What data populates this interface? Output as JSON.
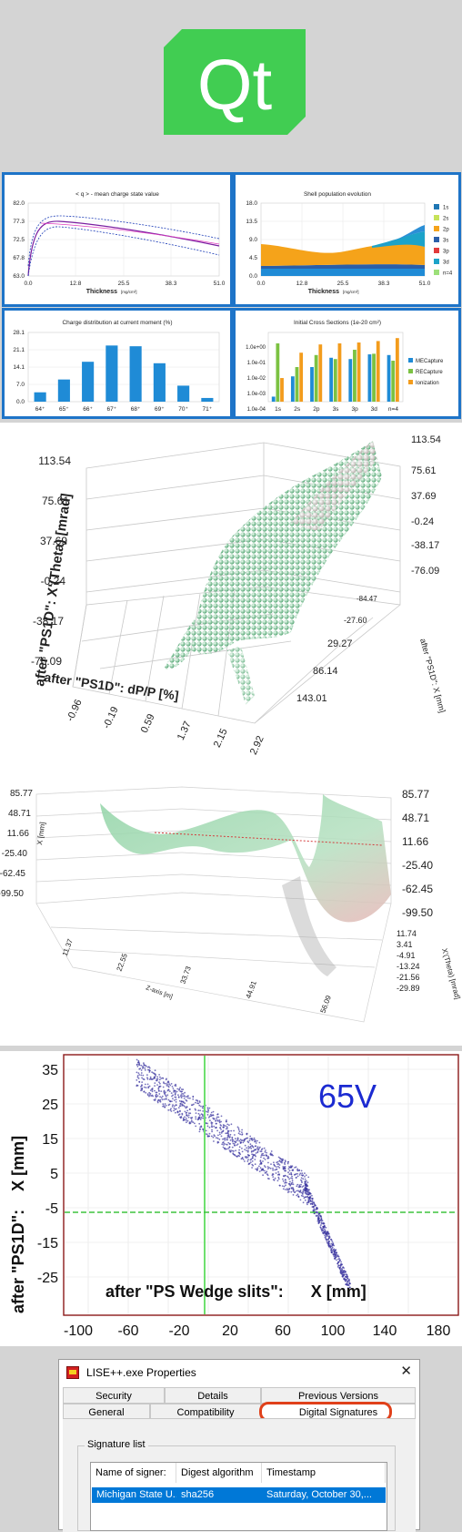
{
  "logo": {
    "text": "Qt",
    "color": "#41cd52"
  },
  "tiles": {
    "charge": {
      "title": "< q >  -  mean charge state value",
      "xlabel": "Thickness",
      "xunit": "[mg/cm²]",
      "yticks": [
        "82.0",
        "77.3",
        "72.5",
        "67.8",
        "63.0"
      ],
      "xticks": [
        "0.0",
        "12.8",
        "25.5",
        "38.3",
        "51.0"
      ]
    },
    "shell": {
      "title": "Shell population evolution",
      "xlabel": "Thickness",
      "xunit": "[mg/cm²]",
      "yticks": [
        "18.0",
        "13.5",
        "9.0",
        "4.5",
        "0.0"
      ],
      "xticks": [
        "0.0",
        "12.8",
        "25.5",
        "38.3",
        "51.0"
      ],
      "legend": [
        {
          "label": "1s",
          "color": "#1f77b4"
        },
        {
          "label": "2s",
          "color": "#c7e35a"
        },
        {
          "label": "2p",
          "color": "#f5a31a"
        },
        {
          "label": "3s",
          "color": "#2b5fa8"
        },
        {
          "label": "3p",
          "color": "#e23b3b"
        },
        {
          "label": "3d",
          "color": "#1ca3c9"
        },
        {
          "label": "n=4",
          "color": "#9de07a"
        }
      ]
    },
    "dist": {
      "title": "Charge distribution at current moment (%)",
      "yticks": [
        "28.1",
        "21.1",
        "14.1",
        "7.0",
        "0.0"
      ]
    },
    "xs": {
      "title": "Initial Cross Sections (1e-20 cm²)",
      "yticks": [
        "1.0e+00",
        "1.0e-01",
        "1.0e-02",
        "1.0e-03",
        "1.0e-04"
      ],
      "categories": [
        "1s",
        "2s",
        "2p",
        "3s",
        "3p",
        "3d",
        "n=4"
      ],
      "legend": [
        {
          "label": "MECapture",
          "color": "#1f8bd6"
        },
        {
          "label": "RECapture",
          "color": "#7cc242"
        },
        {
          "label": "Ionization",
          "color": "#f39c1d"
        }
      ]
    }
  },
  "chart_data": [
    {
      "type": "bar",
      "title": "Charge distribution at current moment (%)",
      "categories": [
        "64⁺",
        "65⁺",
        "66⁺",
        "67⁺",
        "68⁺",
        "69⁺",
        "70⁺",
        "71⁺"
      ],
      "values": [
        3.8,
        9.0,
        16.2,
        22.8,
        22.5,
        15.6,
        6.5,
        1.5
      ],
      "ylim": [
        0,
        28.1
      ]
    },
    {
      "type": "bar",
      "title": "Initial Cross Sections (1e-20 cm²)",
      "categories": [
        "1s",
        "2s",
        "2p",
        "3s",
        "3p",
        "3d",
        "n=4"
      ],
      "series": [
        {
          "name": "MECapture",
          "values": [
            6e-05,
            0.002,
            0.01,
            0.05,
            0.04,
            0.09,
            0.08
          ]
        },
        {
          "name": "RECapture",
          "values": [
            0.6,
            0.01,
            0.08,
            0.04,
            0.2,
            0.1,
            0.03
          ]
        },
        {
          "name": "Ionization",
          "values": [
            0.0015,
            0.12,
            0.5,
            0.6,
            0.7,
            0.9,
            1.5
          ]
        }
      ]
    }
  ],
  "plot3d1": {
    "ylabel": "after \"PS1D\":    X'(Theta) [mrad]",
    "xlabel": "after \"PS1D\":    dP/P [%]",
    "zlabel": "after \"PS1D\":    X [mm]",
    "yticks": [
      "113.54",
      "75.61",
      "37.69",
      "-0.24",
      "-38.17",
      "-76.09"
    ],
    "yticks_right": [
      "113.54",
      "75.61",
      "37.69",
      "-0.24",
      "-38.17",
      "-76.09"
    ],
    "xticks": [
      "-0.96",
      "-0.19",
      "0.59",
      "1.37",
      "2.15",
      "2.92"
    ],
    "zticks": [
      "-84.47",
      "-27.60",
      "29.27",
      "86.14",
      "143.01"
    ]
  },
  "plot3d2": {
    "ylabel": "X [mm]",
    "zlabel": "Z-axis [m]",
    "xlabel": "X'(Theta) [mrad]",
    "yticks": [
      "85.77",
      "48.71",
      "11.66",
      "-25.40",
      "-62.45",
      "-99.50"
    ],
    "yticks_right": [
      "85.77",
      "48.71",
      "11.66",
      "-25.40",
      "-62.45",
      "-99.50"
    ],
    "zticks": [
      "11.37",
      "22.55",
      "33.73",
      "44.91",
      "56.09"
    ],
    "xticks": [
      "11.74",
      "3.41",
      "-4.91",
      "-13.24",
      "-21.56",
      "-29.89"
    ]
  },
  "plot2d": {
    "ylabel": "after \"PS1D\":    X [mm]",
    "xlabel": "after \"PS Wedge slits\":      X [mm]",
    "voltage": "65V",
    "yticks": [
      "35",
      "25",
      "15",
      "5",
      "-5",
      "-15",
      "-25"
    ],
    "xticks": [
      "-100",
      "-60",
      "-20",
      "20",
      "60",
      "100",
      "140",
      "180"
    ]
  },
  "dialog": {
    "title": "LISE++.exe Properties",
    "tabs_row1": [
      "Security",
      "Details",
      "Previous Versions"
    ],
    "tabs_row2": [
      "General",
      "Compatibility",
      "Digital Signatures"
    ],
    "group_label": "Signature list",
    "columns": [
      "Name of signer:",
      "Digest algorithm",
      "Timestamp"
    ],
    "row": [
      "Michigan State U...",
      "sha256",
      "Saturday, October 30,..."
    ],
    "highlight_color": "#e0401a"
  }
}
